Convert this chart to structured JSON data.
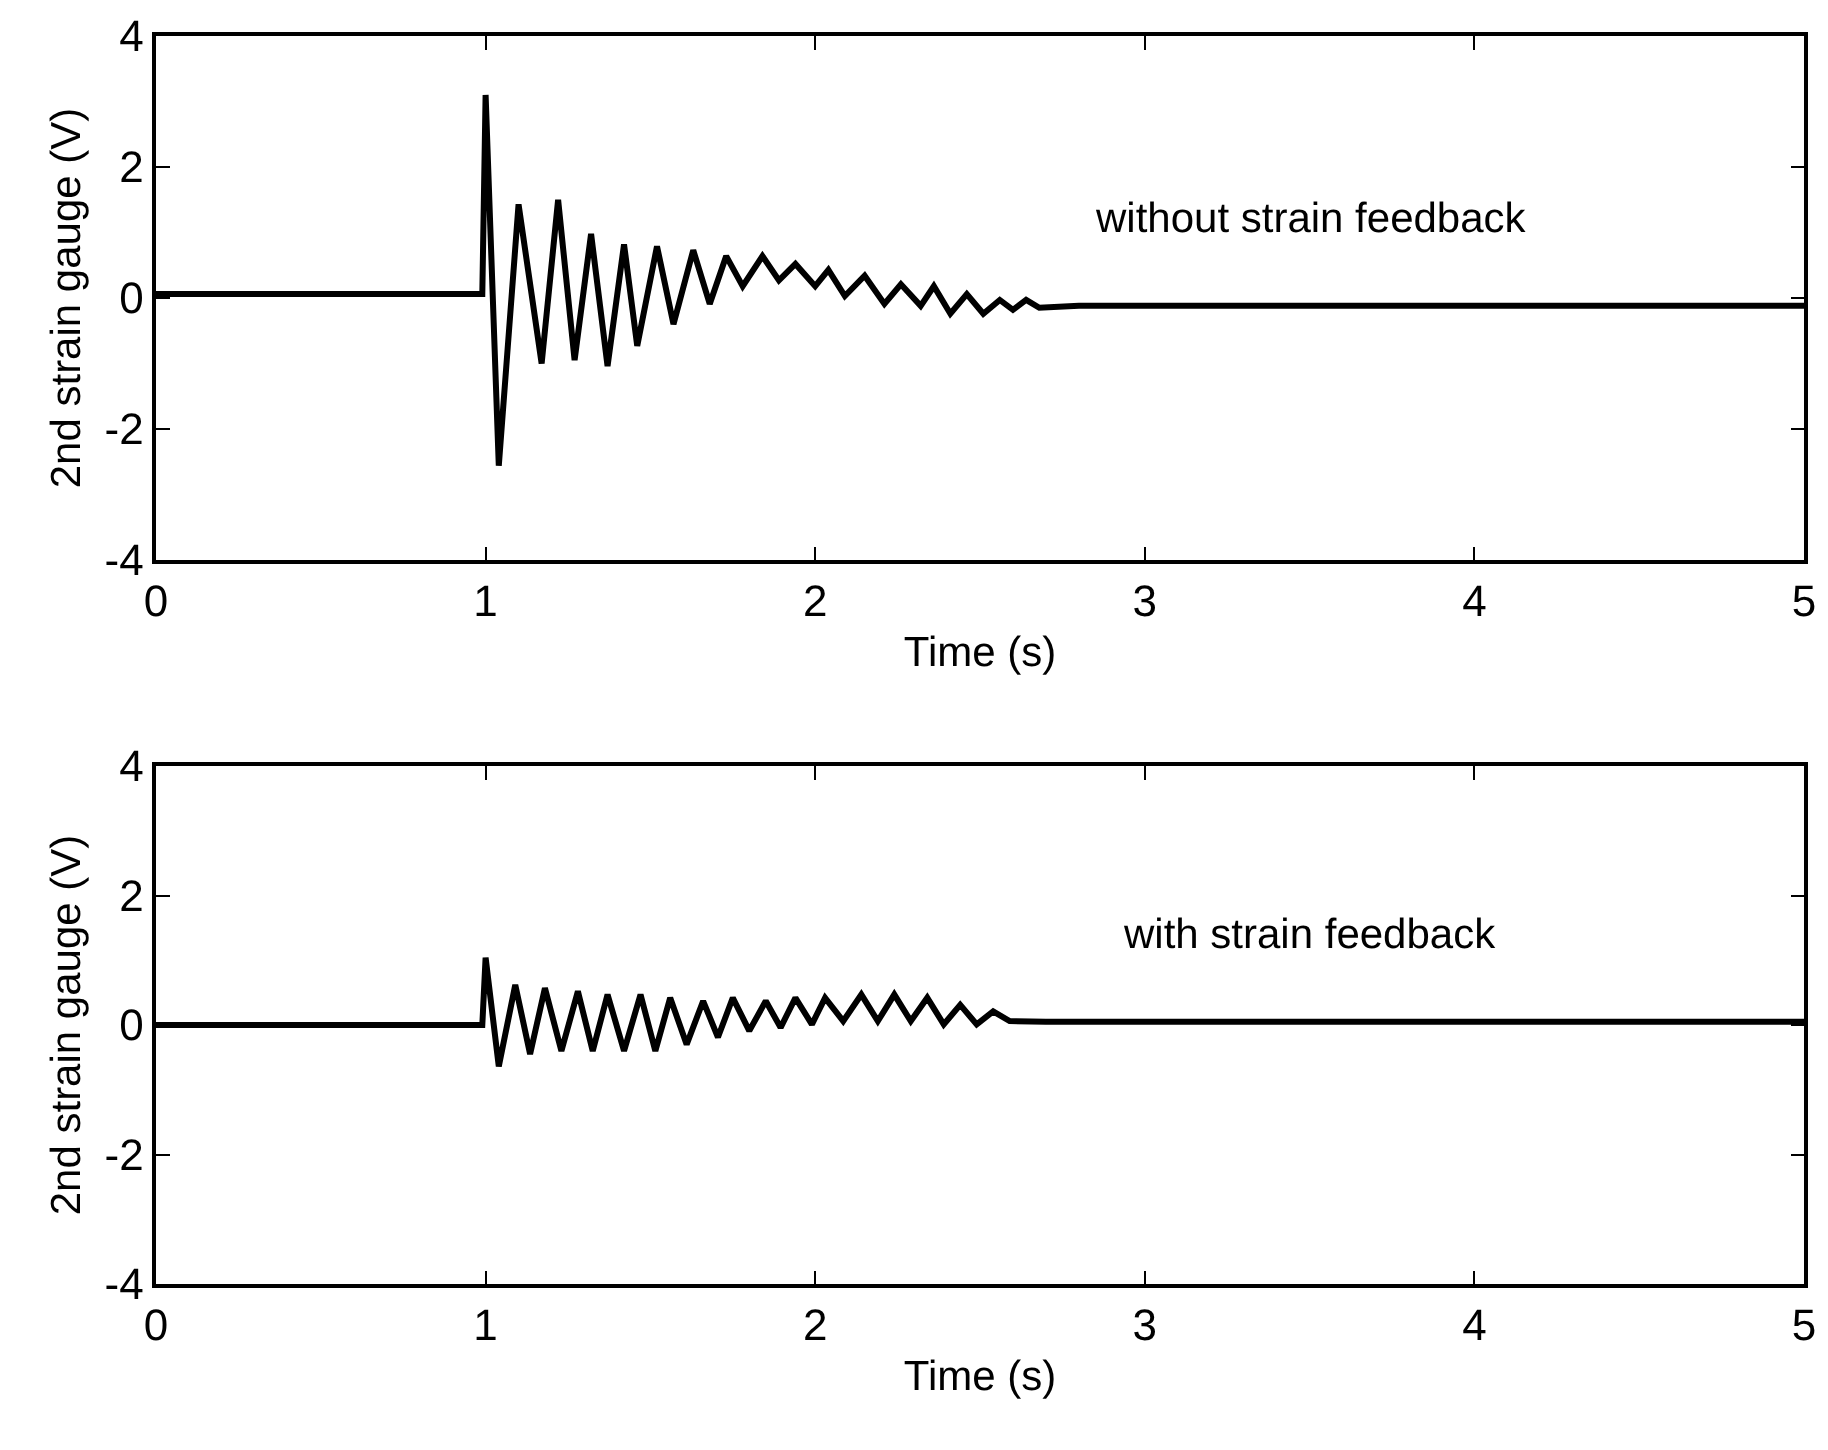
{
  "chart_data": [
    {
      "type": "line",
      "xlabel": "Time (s)",
      "ylabel": "2nd strain gauge (V)",
      "xlim": [
        0,
        5
      ],
      "ylim": [
        -4,
        4
      ],
      "xticks": [
        0,
        1,
        2,
        3,
        4,
        5
      ],
      "yticks": [
        -4,
        -2,
        0,
        2,
        4
      ],
      "grid": false,
      "legend": false,
      "marker": "none",
      "line_style": "solid",
      "series": [
        {
          "name": "without strain feedback",
          "color": "#000000",
          "x": [
            0,
            0.99,
            1.0,
            1.04,
            1.1,
            1.17,
            1.22,
            1.27,
            1.32,
            1.37,
            1.42,
            1.46,
            1.52,
            1.57,
            1.63,
            1.68,
            1.73,
            1.78,
            1.84,
            1.89,
            1.94,
            2.0,
            2.04,
            2.09,
            2.15,
            2.21,
            2.26,
            2.32,
            2.36,
            2.41,
            2.46,
            2.51,
            2.56,
            2.6,
            2.64,
            2.68,
            2.8,
            5
          ],
          "values": [
            0.06,
            0.06,
            3.1,
            -2.56,
            1.43,
            -1.0,
            1.5,
            -0.95,
            0.98,
            -1.04,
            0.82,
            -0.73,
            0.79,
            -0.4,
            0.73,
            -0.09,
            0.64,
            0.18,
            0.64,
            0.27,
            0.52,
            0.18,
            0.43,
            0.03,
            0.34,
            -0.09,
            0.21,
            -0.12,
            0.18,
            -0.24,
            0.06,
            -0.24,
            -0.03,
            -0.18,
            -0.03,
            -0.15,
            -0.12,
            -0.12
          ]
        }
      ]
    },
    {
      "type": "line",
      "xlabel": "Time (s)",
      "ylabel": "2nd strain gauge (V)",
      "xlim": [
        0,
        5
      ],
      "ylim": [
        -4,
        4
      ],
      "xticks": [
        0,
        1,
        2,
        3,
        4,
        5
      ],
      "yticks": [
        -4,
        -2,
        0,
        2,
        4
      ],
      "grid": false,
      "legend": false,
      "marker": "none",
      "line_style": "solid",
      "series": [
        {
          "name": "with strain feedback",
          "color": "#000000",
          "x": [
            0,
            0.99,
            1.0,
            1.04,
            1.09,
            1.135,
            1.18,
            1.23,
            1.28,
            1.325,
            1.37,
            1.42,
            1.47,
            1.515,
            1.56,
            1.61,
            1.66,
            1.705,
            1.75,
            1.8,
            1.85,
            1.895,
            1.94,
            1.99,
            2.03,
            2.085,
            2.14,
            2.19,
            2.24,
            2.29,
            2.34,
            2.39,
            2.44,
            2.49,
            2.54,
            2.59,
            2.7,
            5
          ],
          "values": [
            0.0,
            0.0,
            1.04,
            -0.64,
            0.62,
            -0.45,
            0.57,
            -0.4,
            0.52,
            -0.4,
            0.47,
            -0.4,
            0.47,
            -0.4,
            0.42,
            -0.3,
            0.37,
            -0.19,
            0.42,
            -0.09,
            0.37,
            -0.04,
            0.42,
            0.01,
            0.42,
            0.06,
            0.47,
            0.06,
            0.47,
            0.06,
            0.42,
            0.01,
            0.31,
            0.01,
            0.21,
            0.06,
            0.05,
            0.05
          ]
        }
      ]
    }
  ]
}
